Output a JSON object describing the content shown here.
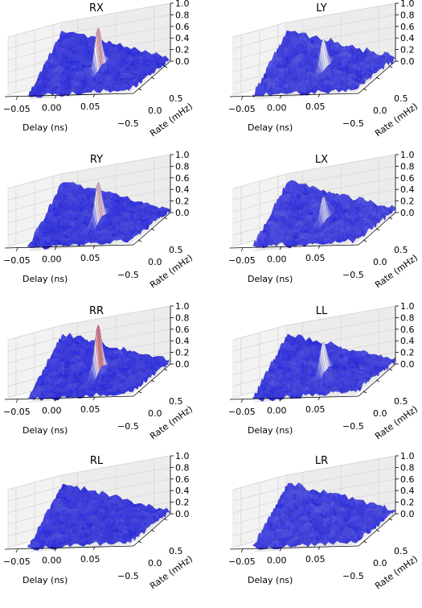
{
  "chart_data": [
    {
      "type": "surface3d",
      "title": "RX",
      "xlabel": "Delay (ns)",
      "ylabel": "Rate (mHz)",
      "xticks": [
        "−0.05",
        "0.00",
        "0.05"
      ],
      "yticks": [
        "−0.5",
        "0.0",
        "0.5"
      ],
      "zticks": [
        "0.0",
        "0.2",
        "0.4",
        "0.6",
        "0.8",
        "1.0"
      ],
      "xlim": [
        -0.07,
        0.07
      ],
      "ylim": [
        -0.7,
        0.7
      ],
      "zlim": [
        0,
        1
      ],
      "peak": {
        "delay": 0.0,
        "rate": 0.0,
        "height": 0.75
      },
      "noise_level": 0.1
    },
    {
      "type": "surface3d",
      "title": "LY",
      "xlabel": "Delay (ns)",
      "ylabel": "Rate (mHz)",
      "xticks": [
        "−0.05",
        "0.00",
        "0.05"
      ],
      "yticks": [
        "−0.5",
        "0.0",
        "0.5"
      ],
      "zticks": [
        "0.0",
        "0.2",
        "0.4",
        "0.6",
        "0.8",
        "1.0"
      ],
      "xlim": [
        -0.07,
        0.07
      ],
      "ylim": [
        -0.7,
        0.7
      ],
      "zlim": [
        0,
        1
      ],
      "peak": {
        "delay": 0.0,
        "rate": 0.0,
        "height": 0.55
      },
      "noise_level": 0.12
    },
    {
      "type": "surface3d",
      "title": "RY",
      "xlabel": "Delay (ns)",
      "ylabel": "Rate (mHz)",
      "xticks": [
        "−0.05",
        "0.00",
        "0.05"
      ],
      "yticks": [
        "−0.5",
        "0.0",
        "0.5"
      ],
      "zticks": [
        "0.0",
        "0.2",
        "0.4",
        "0.6",
        "0.8",
        "1.0"
      ],
      "xlim": [
        -0.07,
        0.07
      ],
      "ylim": [
        -0.7,
        0.7
      ],
      "zlim": [
        0,
        1
      ],
      "peak": {
        "delay": 0.0,
        "rate": 0.0,
        "height": 0.7
      },
      "noise_level": 0.1
    },
    {
      "type": "surface3d",
      "title": "LX",
      "xlabel": "Delay (ns)",
      "ylabel": "Rate (mHz)",
      "xticks": [
        "−0.05",
        "0.00",
        "0.05"
      ],
      "yticks": [
        "−0.5",
        "0.0",
        "0.5"
      ],
      "zticks": [
        "0.0",
        "0.2",
        "0.4",
        "0.6",
        "0.8",
        "1.0"
      ],
      "xlim": [
        -0.07,
        0.07
      ],
      "ylim": [
        -0.7,
        0.7
      ],
      "zlim": [
        0,
        1
      ],
      "peak": {
        "delay": 0.0,
        "rate": 0.0,
        "height": 0.45
      },
      "noise_level": 0.12
    },
    {
      "type": "surface3d",
      "title": "RR",
      "xlabel": "Delay (ns)",
      "ylabel": "Rate (mHz)",
      "xticks": [
        "−0.05",
        "0.00",
        "0.05"
      ],
      "yticks": [
        "−0.5",
        "0.0",
        "0.5"
      ],
      "zticks": [
        "0.0",
        "0.2",
        "0.4",
        "0.6",
        "0.8",
        "1.0"
      ],
      "xlim": [
        -0.07,
        0.07
      ],
      "ylim": [
        -0.7,
        0.7
      ],
      "zlim": [
        0,
        1
      ],
      "peak": {
        "delay": 0.0,
        "rate": 0.0,
        "height": 0.85
      },
      "noise_level": 0.1
    },
    {
      "type": "surface3d",
      "title": "LL",
      "xlabel": "Delay (ns)",
      "ylabel": "Rate (mHz)",
      "xticks": [
        "−0.05",
        "0.00",
        "0.05"
      ],
      "yticks": [
        "−0.5",
        "0.0",
        "0.5"
      ],
      "zticks": [
        "0.0",
        "0.2",
        "0.4",
        "0.6",
        "0.8",
        "1.0"
      ],
      "xlim": [
        -0.07,
        0.07
      ],
      "ylim": [
        -0.7,
        0.7
      ],
      "zlim": [
        0,
        1
      ],
      "peak": {
        "delay": 0.0,
        "rate": 0.0,
        "height": 0.55
      },
      "noise_level": 0.11
    },
    {
      "type": "surface3d",
      "title": "RL",
      "xlabel": "Delay (ns)",
      "ylabel": "Rate (mHz)",
      "xticks": [
        "−0.05",
        "0.00",
        "0.05"
      ],
      "yticks": [
        "−0.5",
        "0.0",
        "0.5"
      ],
      "zticks": [
        "0.0",
        "0.2",
        "0.4",
        "0.6",
        "0.8",
        "1.0"
      ],
      "xlim": [
        -0.07,
        0.07
      ],
      "ylim": [
        -0.7,
        0.7
      ],
      "zlim": [
        0,
        1
      ],
      "peak": {
        "delay": 0.0,
        "rate": 0.0,
        "height": 0.0
      },
      "noise_level": 0.1
    },
    {
      "type": "surface3d",
      "title": "LR",
      "xlabel": "Delay (ns)",
      "ylabel": "Rate (mHz)",
      "xticks": [
        "−0.05",
        "0.00",
        "0.05"
      ],
      "yticks": [
        "−0.5",
        "0.0",
        "0.5"
      ],
      "zticks": [
        "0.0",
        "0.2",
        "0.4",
        "0.6",
        "0.8",
        "1.0"
      ],
      "xlim": [
        -0.07,
        0.07
      ],
      "ylim": [
        -0.7,
        0.7
      ],
      "zlim": [
        0,
        1
      ],
      "peak": {
        "delay": 0.0,
        "rate": 0.0,
        "height": 0.0
      },
      "noise_level": 0.12
    }
  ],
  "colors": {
    "surface_low": "#1a1adf",
    "surface_high": "#cc1111",
    "mesh_line": "#3b3b9a",
    "pane": "#f2f2f2",
    "grid": "#d4d4d4"
  }
}
